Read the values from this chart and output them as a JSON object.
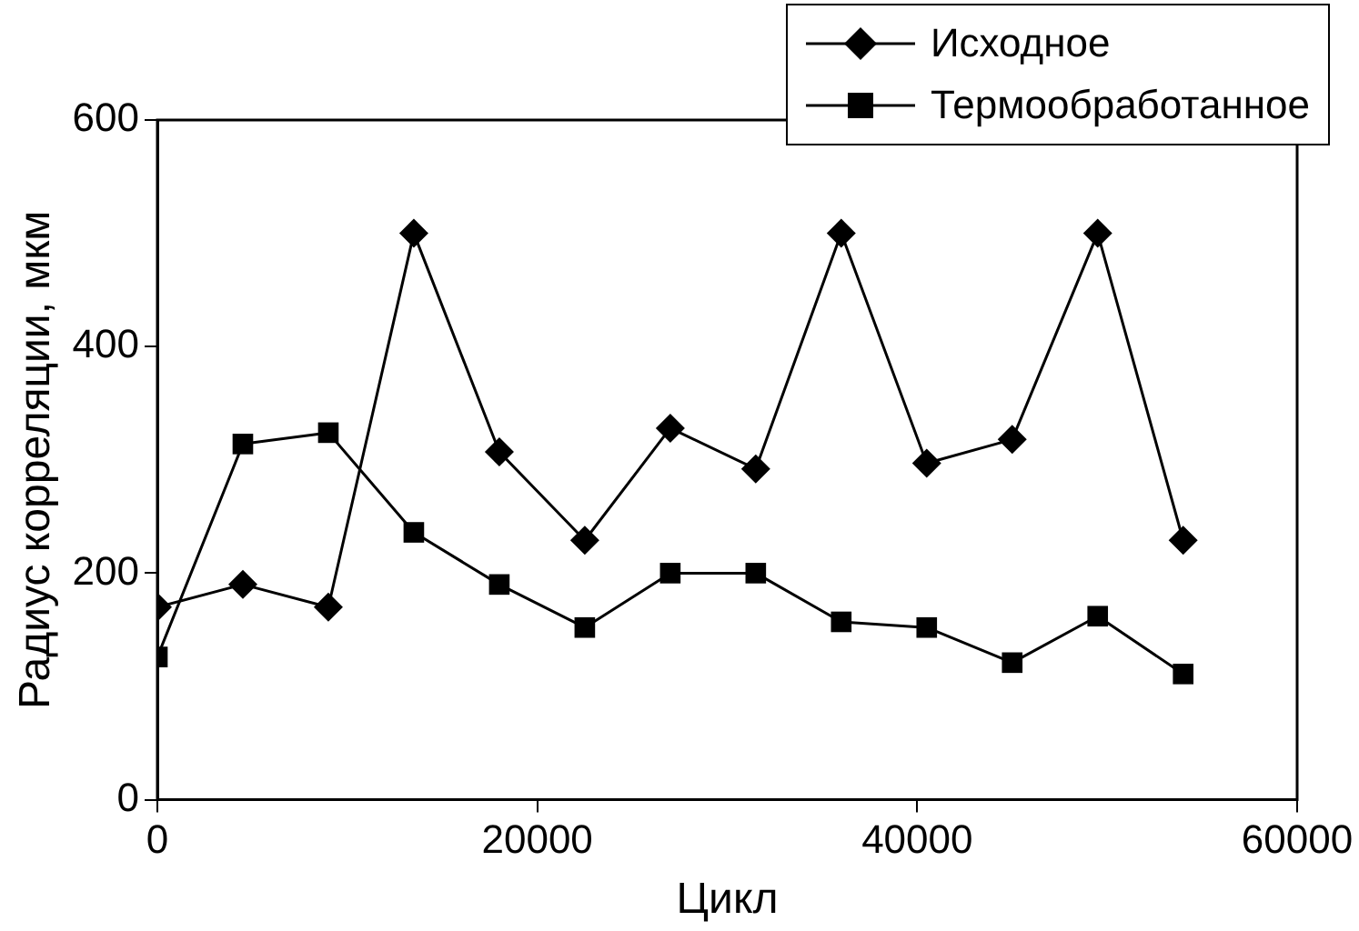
{
  "chart_data": {
    "type": "line",
    "xlabel": "Цикл",
    "ylabel": "Радиус корреляции, мкм",
    "x": [
      0,
      4500,
      9000,
      13500,
      18000,
      22500,
      27000,
      31500,
      36000,
      40500,
      45000,
      49500,
      54000
    ],
    "series": [
      {
        "name": "Исходное",
        "color": "#000000",
        "marker": "diamond",
        "values": [
          170,
          190,
          170,
          500,
          307,
          229,
          328,
          292,
          500,
          297,
          318,
          500,
          229
        ]
      },
      {
        "name": "Термообработанное",
        "color": "#000000",
        "marker": "square",
        "values": [
          126,
          314,
          324,
          236,
          190,
          152,
          200,
          200,
          157,
          152,
          121,
          162,
          111
        ]
      }
    ],
    "xlim": [
      0,
      60000
    ],
    "xticks": [
      0,
      20000,
      40000,
      60000
    ],
    "ylim": [
      0,
      600
    ],
    "yticks": [
      0,
      200,
      400,
      600
    ],
    "grid": false,
    "legend": "top right",
    "line_style": "solid"
  }
}
